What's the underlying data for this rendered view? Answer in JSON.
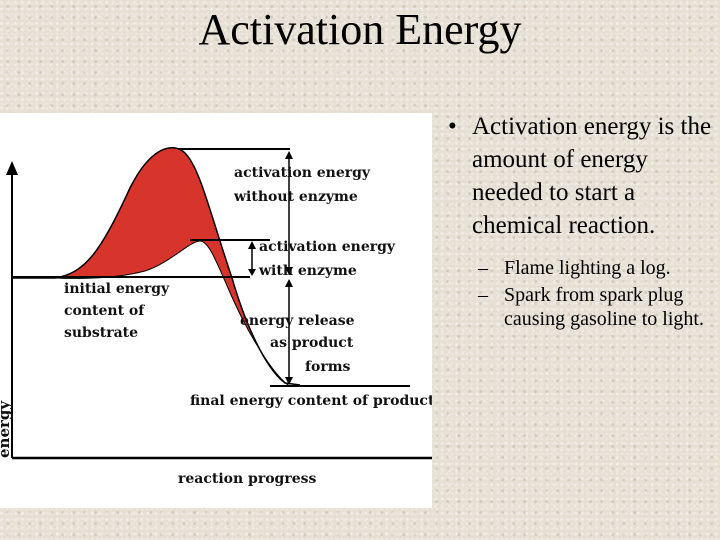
{
  "slide": {
    "title": "Activation Energy"
  },
  "diagram": {
    "y_axis_label": "energy",
    "x_axis_label": "reaction progress",
    "labels": {
      "without_enzyme_1": "activation energy",
      "without_enzyme_2": "without enzyme",
      "with_enzyme_1": "activation energy",
      "with_enzyme_2": "with enzyme",
      "initial_1": "initial energy",
      "initial_2": "content of",
      "initial_3": "substrate",
      "release_1": "energy release",
      "release_2": "as product",
      "release_3": "forms",
      "final": "final energy content of products"
    },
    "colors": {
      "curve_fill": "#d7352b",
      "line": "#000000"
    }
  },
  "bullets": {
    "main": "Activation energy is the amount of energy needed to start a chemical reaction.",
    "sub": [
      "Flame lighting a log.",
      "Spark from spark plug causing gasoline to light."
    ]
  }
}
